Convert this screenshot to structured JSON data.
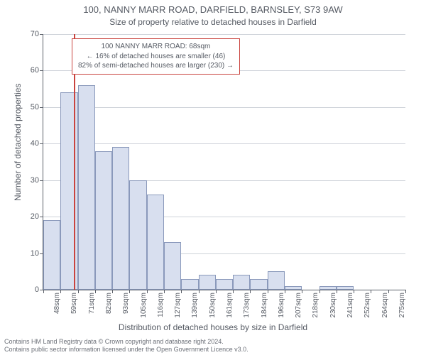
{
  "titles": {
    "main": "100, NANNY MARR ROAD, DARFIELD, BARNSLEY, S73 9AW",
    "sub": "Size of property relative to detached houses in Darfield",
    "y_axis": "Number of detached properties",
    "x_axis": "Distribution of detached houses by size in Darfield"
  },
  "annotation": {
    "line1": "100 NANNY MARR ROAD: 68sqm",
    "line2": "← 16% of detached houses are smaller (46)",
    "line3": "82% of semi-detached houses are larger (230) →",
    "border_color": "#c9433e"
  },
  "chart": {
    "type": "bar",
    "ymax": 70,
    "ytick_step": 10,
    "yticks": [
      0,
      10,
      20,
      30,
      40,
      50,
      60,
      70
    ],
    "bar_fill": "#d8dfef",
    "bar_border": "#8a99bb",
    "grid_color": "#ced2d9",
    "axis_color": "#5a5f68",
    "ref_line_color": "#c9433e",
    "ref_line_x": 68,
    "x_labels": [
      "48sqm",
      "59sqm",
      "71sqm",
      "82sqm",
      "93sqm",
      "105sqm",
      "116sqm",
      "127sqm",
      "139sqm",
      "150sqm",
      "161sqm",
      "173sqm",
      "184sqm",
      "196sqm",
      "207sqm",
      "218sqm",
      "230sqm",
      "241sqm",
      "252sqm",
      "264sqm",
      "275sqm"
    ],
    "values": [
      19,
      54,
      56,
      38,
      39,
      30,
      26,
      13,
      3,
      4,
      3,
      4,
      3,
      5,
      1,
      0,
      1,
      1,
      0,
      0,
      0
    ]
  },
  "footer": {
    "line1": "Contains HM Land Registry data © Crown copyright and database right 2024.",
    "line2": "Contains public sector information licensed under the Open Government Licence v3.0."
  }
}
